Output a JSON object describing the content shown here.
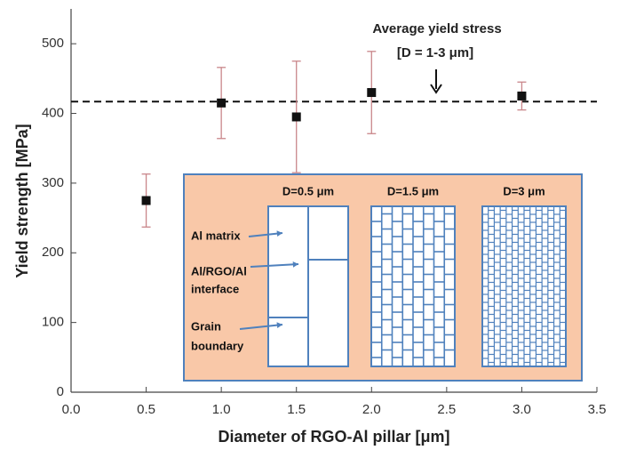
{
  "chart_data": {
    "type": "scatter",
    "x_label": "Diameter of RGO-Al pillar [μm]",
    "y_label": "Yield strength [MPa]",
    "xlim": [
      0,
      3.5
    ],
    "xticks": [
      {
        "value": 0,
        "label": "0.0"
      },
      {
        "value": 0.5,
        "label": "0.5"
      },
      {
        "value": 1,
        "label": "1.0"
      },
      {
        "value": 1.5,
        "label": "1.5"
      },
      {
        "value": 2,
        "label": "2.0"
      },
      {
        "value": 2.5,
        "label": "2.5"
      },
      {
        "value": 3,
        "label": "3.0"
      },
      {
        "value": 3.5,
        "label": "3.5"
      }
    ],
    "ylim": [
      0,
      550
    ],
    "yticks": [
      0,
      100,
      200,
      300,
      400,
      500
    ],
    "series": [
      {
        "x": [
          0.5,
          1,
          1.5,
          2,
          3
        ],
        "values": [
          275,
          415,
          395,
          430,
          425
        ],
        "errors": [
          38,
          51,
          80,
          59,
          20
        ],
        "color": "#111111",
        "error_color": "#c9868a"
      }
    ],
    "reference_line": {
      "value": 417,
      "label": "Average yield stress",
      "sublabel": "[D = 1-3 μm]"
    },
    "inset": {
      "panels": [
        "D=0.5 μm",
        "D=1.5 μm",
        "D=3 μm"
      ],
      "labels": [
        "Al matrix",
        "Al/RGO/Al",
        "interface",
        "Grain",
        "boundary"
      ]
    }
  }
}
